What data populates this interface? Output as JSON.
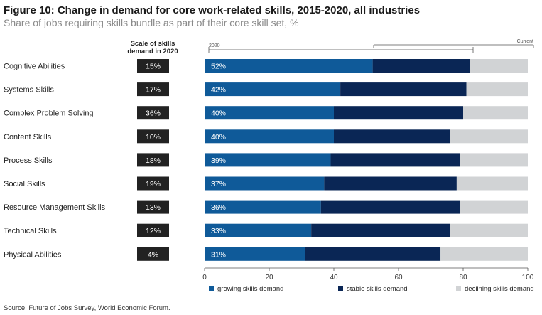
{
  "title": "Figure 10: Change in demand for core work-related skills, 2015-2020, all industries",
  "subtitle": "Share of jobs requiring skills bundle as part of their core skill set, %",
  "scale_header": "Scale of skills demand in 2020",
  "source": "Source: Future of Jobs Survey, World Economic Forum.",
  "colors": {
    "growing": "#0f5a99",
    "stable": "#0a2655",
    "declining": "#d1d3d5",
    "scale_box": "#222222"
  },
  "chart_data": {
    "type": "bar",
    "orientation": "horizontal",
    "stacked": true,
    "title": "Figure 10: Change in demand for core work-related skills, 2015-2020, all industries",
    "subtitle": "Share of jobs requiring skills bundle as part of their core skill set, %",
    "categories": [
      "Cognitive Abilities",
      "Systems Skills",
      "Complex Problem Solving",
      "Content Skills",
      "Process Skills",
      "Social Skills",
      "Resource Management Skills",
      "Technical Skills",
      "Physical Abilities"
    ],
    "scale_2020": [
      "15%",
      "17%",
      "36%",
      "10%",
      "18%",
      "19%",
      "13%",
      "12%",
      "4%"
    ],
    "series": [
      {
        "name": "growing skills demand",
        "values": [
          52,
          42,
          40,
          40,
          39,
          37,
          36,
          33,
          31
        ],
        "labels": [
          "52%",
          "42%",
          "40%",
          "40%",
          "39%",
          "37%",
          "36%",
          "33%",
          "31%"
        ]
      },
      {
        "name": "stable skills demand",
        "values": [
          30,
          39,
          40,
          36,
          40,
          41,
          43,
          43,
          42
        ]
      },
      {
        "name": "declining skills demand",
        "values": [
          18,
          19,
          20,
          24,
          21,
          22,
          21,
          24,
          27
        ]
      }
    ],
    "xlim": [
      0,
      100
    ],
    "xticks": [
      0,
      20,
      40,
      60,
      80,
      100
    ],
    "bracket_labels": {
      "left": "2020",
      "right": "Current"
    },
    "legend_position": "bottom",
    "grid": false
  }
}
